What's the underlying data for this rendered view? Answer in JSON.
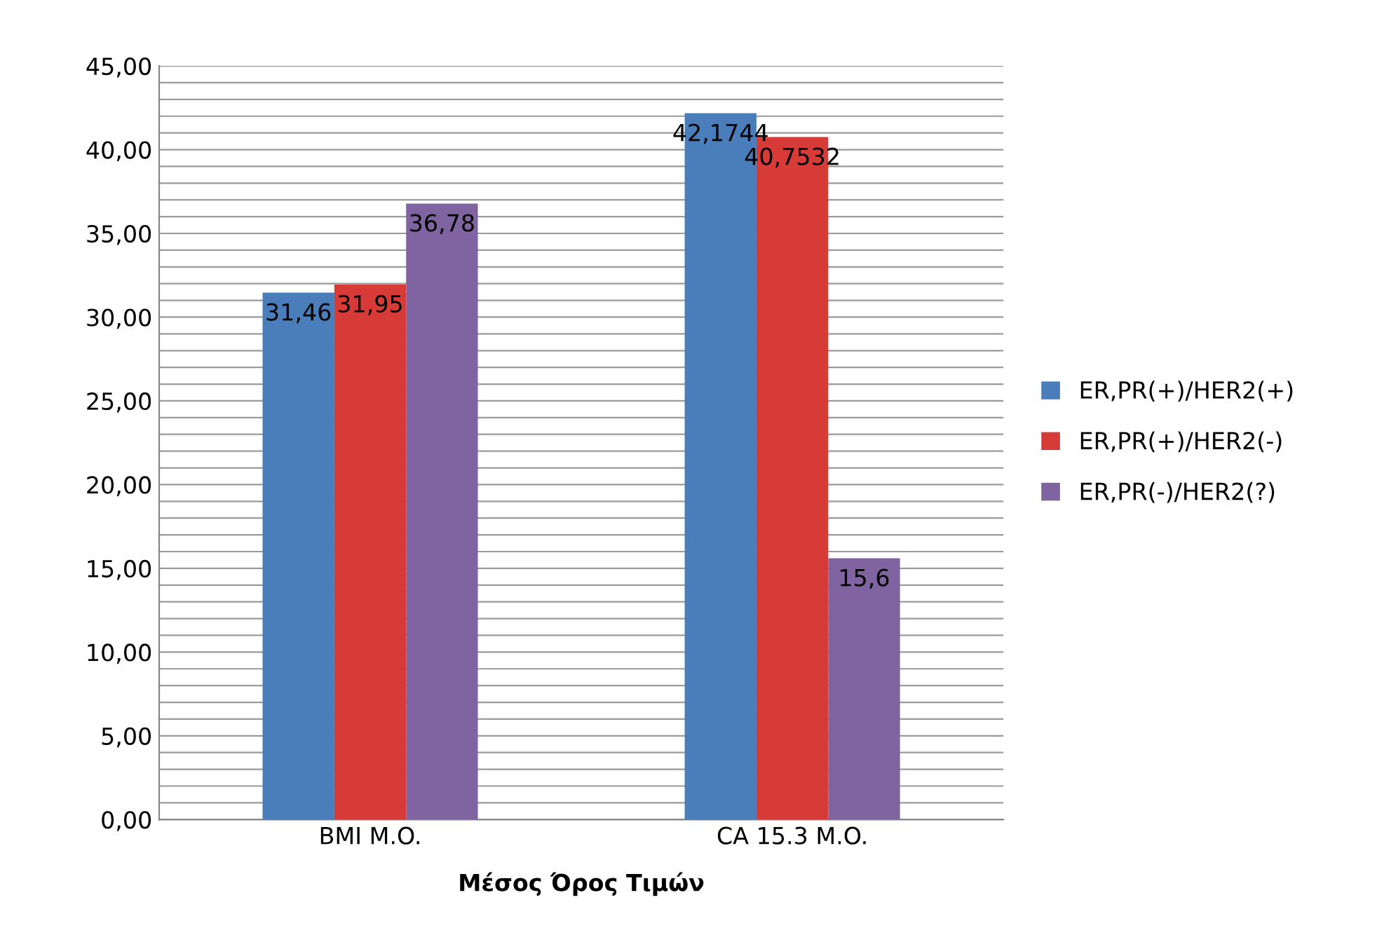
{
  "chart_data": {
    "type": "bar",
    "xlabel": "Μέσος Όρος Τιμών",
    "categories": [
      "BMI M.O.",
      "CA 15.3 M.O."
    ],
    "series": [
      {
        "name": "ER,PR(+)/HER2(+)",
        "color": "#4a7ebb",
        "values": [
          31.46,
          42.1744
        ],
        "value_labels": [
          "31,46",
          "42,1744"
        ]
      },
      {
        "name": "ER,PR(+)/HER2(-)",
        "color": "#d63b38",
        "values": [
          31.95,
          40.7532
        ],
        "value_labels": [
          "31,95",
          "40,7532"
        ]
      },
      {
        "name": "ER,PR(-)/HER2(?)",
        "color": "#8064a2",
        "values": [
          36.78,
          15.6
        ],
        "value_labels": [
          "36,78",
          "15,6"
        ]
      }
    ],
    "ylim": [
      0,
      45
    ],
    "yticks": [
      {
        "value": 0,
        "label": "0,00"
      },
      {
        "value": 1,
        "label": null
      },
      {
        "value": 2,
        "label": null
      },
      {
        "value": 3,
        "label": null
      },
      {
        "value": 4,
        "label": null
      },
      {
        "value": 5,
        "label": "5,00"
      },
      {
        "value": 6,
        "label": null
      },
      {
        "value": 7,
        "label": null
      },
      {
        "value": 8,
        "label": null
      },
      {
        "value": 9,
        "label": null
      },
      {
        "value": 10,
        "label": "10,00"
      },
      {
        "value": 11,
        "label": null
      },
      {
        "value": 12,
        "label": null
      },
      {
        "value": 13,
        "label": null
      },
      {
        "value": 14,
        "label": null
      },
      {
        "value": 15,
        "label": "15,00"
      },
      {
        "value": 16,
        "label": null
      },
      {
        "value": 17,
        "label": null
      },
      {
        "value": 18,
        "label": null
      },
      {
        "value": 19,
        "label": null
      },
      {
        "value": 20,
        "label": "20,00"
      },
      {
        "value": 21,
        "label": null
      },
      {
        "value": 22,
        "label": null
      },
      {
        "value": 23,
        "label": null
      },
      {
        "value": 24,
        "label": null
      },
      {
        "value": 25,
        "label": "25,00"
      },
      {
        "value": 26,
        "label": null
      },
      {
        "value": 27,
        "label": null
      },
      {
        "value": 28,
        "label": null
      },
      {
        "value": 29,
        "label": null
      },
      {
        "value": 30,
        "label": "30,00"
      },
      {
        "value": 31,
        "label": null
      },
      {
        "value": 32,
        "label": null
      },
      {
        "value": 33,
        "label": null
      },
      {
        "value": 34,
        "label": null
      },
      {
        "value": 35,
        "label": "35,00"
      },
      {
        "value": 36,
        "label": null
      },
      {
        "value": 37,
        "label": null
      },
      {
        "value": 38,
        "label": null
      },
      {
        "value": 39,
        "label": null
      },
      {
        "value": 40,
        "label": "40,00"
      },
      {
        "value": 41,
        "label": null
      },
      {
        "value": 42,
        "label": null
      },
      {
        "value": 43,
        "label": null
      },
      {
        "value": 44,
        "label": null
      },
      {
        "value": 45,
        "label": "45,00"
      }
    ],
    "grid": "y",
    "legend": "right"
  }
}
